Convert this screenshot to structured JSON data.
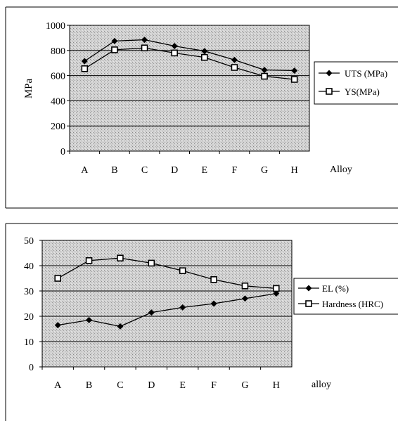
{
  "chart_data": [
    {
      "type": "line",
      "ylabel": "MPa",
      "xlabel": "Alloy",
      "categories": [
        "A",
        "B",
        "C",
        "D",
        "E",
        "F",
        "G",
        "H"
      ],
      "ylim": [
        0,
        1000
      ],
      "yticks": [
        "0",
        "200",
        "400",
        "600",
        "800",
        "1000"
      ],
      "grid": true,
      "legend_position": "right",
      "series": [
        {
          "name": "UTS (MPa)",
          "marker": "diamond",
          "values": [
            715,
            875,
            885,
            835,
            795,
            725,
            645,
            640
          ]
        },
        {
          "name": "YS(MPa)",
          "marker": "square",
          "values": [
            655,
            805,
            820,
            780,
            745,
            665,
            595,
            570
          ]
        }
      ]
    },
    {
      "type": "line",
      "ylabel": "",
      "xlabel": "alloy",
      "categories": [
        "A",
        "B",
        "C",
        "D",
        "E",
        "F",
        "G",
        "H"
      ],
      "ylim": [
        0,
        50
      ],
      "yticks": [
        "0",
        "10",
        "20",
        "30",
        "40",
        "50"
      ],
      "grid": true,
      "legend_position": "right",
      "series": [
        {
          "name": "EL (%)",
          "marker": "diamond",
          "values": [
            16.5,
            18.5,
            16,
            21.5,
            23.5,
            25,
            27,
            29
          ]
        },
        {
          "name": "Hardness (HRC)",
          "marker": "square",
          "values": [
            35,
            42,
            43,
            41,
            38,
            34.5,
            32,
            31
          ]
        }
      ]
    }
  ]
}
